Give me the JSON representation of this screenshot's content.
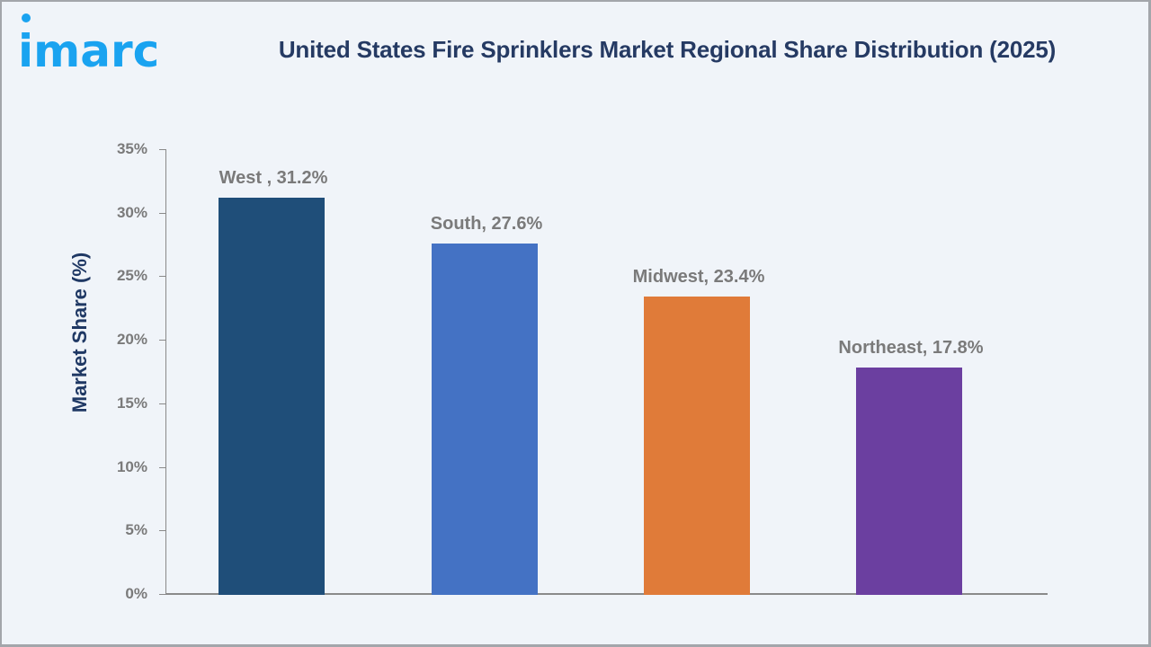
{
  "brand": {
    "logo_text": "imarc",
    "logo_color": "#1aa3f0"
  },
  "header": {
    "title": "United States Fire Sprinklers Market Regional Share Distribution (2025)"
  },
  "chart_data": {
    "type": "bar",
    "title": "United States Fire Sprinklers Market Regional Share Distribution (2025)",
    "xlabel": "",
    "ylabel": "Market Share (%)",
    "ylim": [
      0,
      35
    ],
    "yticks": [
      "0%",
      "5%",
      "10%",
      "15%",
      "20%",
      "25%",
      "30%",
      "35%"
    ],
    "categories": [
      "West",
      "South",
      "Midwest",
      "Northeast"
    ],
    "values": [
      31.2,
      27.6,
      23.4,
      17.8
    ],
    "data_labels": [
      "West , 31.2%",
      "South, 27.6%",
      "Midwest, 23.4%",
      "Northeast, 17.8%"
    ],
    "colors": [
      "#1f4e79",
      "#4472c4",
      "#e07b39",
      "#6b3fa0"
    ],
    "grid": false,
    "legend": "none"
  }
}
